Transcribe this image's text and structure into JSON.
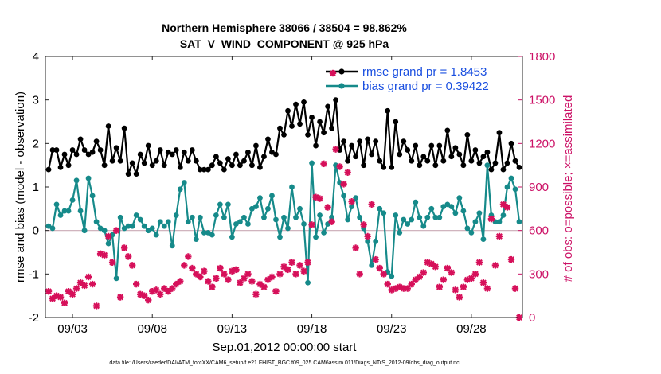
{
  "chart_data": {
    "type": "line",
    "title": "Northern Hemisphere 38066 / 38504 = 98.862%",
    "subtitle": "SAT_V_WIND_COMPONENT @ 925 hPa",
    "xlabel": "Sep.01,2012 00:00:00 start",
    "ylabel": "rmse and bias (model - observation)",
    "y2label": "# of obs: o=possible; ×=assimilated",
    "ylim": [
      -2,
      4
    ],
    "y2lim": [
      0,
      1800
    ],
    "xlim": [
      1.3,
      31.2
    ],
    "x_ticks": [
      3,
      8,
      13,
      18,
      23,
      28
    ],
    "x_ticklabels": [
      "09/03",
      "09/08",
      "09/13",
      "09/18",
      "09/23",
      "09/28"
    ],
    "y_ticks": [
      -2,
      -1,
      0,
      1,
      2,
      3,
      4
    ],
    "y2_ticks": [
      0,
      300,
      600,
      900,
      1200,
      1500,
      1800
    ],
    "zero_line": 0,
    "footnote": "data file: /Users/raeder/DAI/ATM_forcXX/CAM6_setup/f.e21.FHIST_BGC.f09_025.CAM6assim.011/Diags_NTrS_2012-09/obs_diag_output.nc",
    "legend_position": "top-right",
    "series": [
      {
        "name": "rmse grand pr = 1.8453",
        "axis": "left",
        "color": "#000000",
        "marker": "dot",
        "x": [
          1.5,
          1.75,
          2.0,
          2.25,
          2.5,
          2.75,
          3.0,
          3.25,
          3.5,
          3.75,
          4.0,
          4.25,
          4.5,
          4.75,
          5.0,
          5.25,
          5.5,
          5.75,
          6.0,
          6.25,
          6.5,
          6.75,
          7.0,
          7.25,
          7.5,
          7.75,
          8.0,
          8.25,
          8.5,
          8.75,
          9.0,
          9.25,
          9.5,
          9.75,
          10.0,
          10.25,
          10.5,
          10.75,
          11.0,
          11.25,
          11.5,
          11.75,
          12.0,
          12.25,
          12.5,
          12.75,
          13.0,
          13.25,
          13.5,
          13.75,
          14.0,
          14.25,
          14.5,
          14.75,
          15.0,
          15.25,
          15.5,
          15.75,
          16.0,
          16.25,
          16.5,
          16.75,
          17.0,
          17.25,
          17.5,
          17.75,
          18.0,
          18.25,
          18.5,
          18.75,
          19.0,
          19.25,
          19.5,
          19.75,
          20.0,
          20.25,
          20.5,
          20.75,
          21.0,
          21.25,
          21.5,
          21.75,
          22.0,
          22.25,
          22.5,
          22.75,
          23.0,
          23.25,
          23.5,
          23.75,
          24.0,
          24.25,
          24.5,
          24.75,
          25.0,
          25.25,
          25.5,
          25.75,
          26.0,
          26.25,
          26.5,
          26.75,
          27.0,
          27.25,
          27.5,
          27.75,
          28.0,
          28.25,
          28.5,
          28.75,
          29.0,
          29.25,
          29.5,
          29.75,
          30.0,
          30.25,
          30.5,
          30.75,
          31.0
        ],
        "y": [
          1.4,
          1.85,
          1.85,
          1.45,
          1.75,
          1.5,
          1.85,
          1.75,
          2.1,
          1.85,
          1.75,
          1.8,
          2.05,
          1.85,
          1.5,
          2.4,
          1.6,
          1.9,
          1.6,
          2.35,
          1.3,
          1.55,
          1.3,
          1.75,
          1.55,
          1.95,
          1.5,
          1.6,
          1.85,
          1.5,
          1.8,
          1.75,
          1.85,
          1.45,
          1.8,
          1.6,
          1.85,
          1.6,
          1.4,
          1.4,
          1.4,
          1.5,
          1.7,
          1.55,
          1.4,
          1.65,
          1.5,
          1.75,
          1.5,
          1.6,
          1.8,
          1.5,
          1.95,
          1.45,
          1.7,
          2.1,
          1.8,
          1.75,
          2.35,
          2.2,
          2.75,
          2.4,
          2.9,
          2.45,
          2.95,
          2.2,
          2.6,
          1.95,
          2.5,
          2.25,
          2.85,
          2.35,
          3.0,
          1.85,
          2.05,
          1.6,
          1.95,
          1.7,
          2.05,
          1.5,
          2.1,
          1.75,
          2.05,
          1.6,
          1.45,
          2.75,
          1.45,
          2.5,
          1.75,
          2.05,
          1.85,
          1.6,
          1.95,
          1.5,
          1.7,
          1.6,
          1.95,
          1.5,
          1.95,
          1.6,
          2.3,
          1.7,
          1.9,
          1.75,
          1.5,
          2.2,
          1.6,
          1.85,
          1.55,
          1.7,
          1.8,
          1.4,
          1.55,
          2.25,
          1.4,
          1.55,
          2.0,
          1.6,
          1.45
        ],
        "hidden_series_names": null
      },
      {
        "name": "bias grand pr = 0.39422",
        "axis": "left",
        "color": "#168a8a",
        "marker": "dot",
        "x": [
          1.5,
          1.75,
          2.0,
          2.25,
          2.5,
          2.75,
          3.0,
          3.25,
          3.5,
          3.75,
          4.0,
          4.25,
          4.5,
          4.75,
          5.0,
          5.25,
          5.5,
          5.75,
          6.0,
          6.25,
          6.5,
          6.75,
          7.0,
          7.25,
          7.5,
          7.75,
          8.0,
          8.25,
          8.5,
          8.75,
          9.0,
          9.25,
          9.5,
          9.75,
          10.0,
          10.25,
          10.5,
          10.75,
          11.0,
          11.25,
          11.5,
          11.75,
          12.0,
          12.25,
          12.5,
          12.75,
          13.0,
          13.25,
          13.5,
          13.75,
          14.0,
          14.25,
          14.5,
          14.75,
          15.0,
          15.25,
          15.5,
          15.75,
          16.0,
          16.25,
          16.5,
          16.75,
          17.0,
          17.25,
          17.5,
          17.75,
          18.0,
          18.25,
          18.5,
          18.75,
          19.0,
          19.25,
          19.5,
          19.75,
          20.0,
          20.25,
          20.5,
          20.75,
          21.0,
          21.25,
          21.5,
          21.75,
          22.0,
          22.25,
          22.5,
          22.75,
          23.0,
          23.25,
          23.5,
          23.75,
          24.0,
          24.25,
          24.5,
          24.75,
          25.0,
          25.25,
          25.5,
          25.75,
          26.0,
          26.25,
          26.5,
          26.75,
          27.0,
          27.25,
          27.5,
          27.75,
          28.0,
          28.25,
          28.5,
          28.75,
          29.0,
          29.25,
          29.5,
          29.75,
          30.0,
          30.25,
          30.5,
          30.75,
          31.0
        ],
        "y": [
          0.1,
          0.05,
          0.6,
          0.35,
          0.45,
          0.45,
          0.7,
          1.15,
          0.45,
          0.0,
          1.2,
          0.8,
          0.2,
          0.05,
          0.0,
          -0.3,
          -0.1,
          -1.1,
          0.3,
          0.05,
          0.1,
          0.1,
          0.35,
          0.25,
          0.1,
          0.0,
          0.05,
          -0.1,
          0.2,
          0.1,
          0.2,
          -0.35,
          0.35,
          0.95,
          1.1,
          0.2,
          0.3,
          -0.2,
          0.3,
          -0.05,
          -0.05,
          -0.1,
          0.35,
          0.6,
          0.3,
          0.6,
          -0.15,
          0.15,
          0.2,
          0.3,
          0.15,
          0.5,
          0.55,
          0.75,
          0.3,
          0.5,
          0.8,
          0.25,
          -0.15,
          0.3,
          0.05,
          1.0,
          0.3,
          0.5,
          0.15,
          -1.2,
          1.55,
          -0.15,
          0.35,
          -0.05,
          0.15,
          0.3,
          1.5,
          1.1,
          0.8,
          0.25,
          0.55,
          0.75,
          0.3,
          0.05,
          -0.25,
          -0.8,
          -0.25,
          0.5,
          0.4,
          -0.95,
          -1.05,
          0.35,
          -0.05,
          0.25,
          0.15,
          0.25,
          0.65,
          0.3,
          0.1,
          0.3,
          0.5,
          0.3,
          0.3,
          0.55,
          0.6,
          0.55,
          0.4,
          0.75,
          0.45,
          0.05,
          -0.05,
          0.2,
          0.4,
          -0.2,
          1.5,
          0.35,
          0.2,
          0.2,
          0.35,
          1.0,
          1.2,
          0.95,
          0.2
        ],
        "hidden_series_names": null
      },
      {
        "name": "",
        "axis": "right",
        "color": "#d6105a",
        "marker": "asterisk",
        "x": [
          1.5,
          1.75,
          2.0,
          2.25,
          2.5,
          2.75,
          3.0,
          3.25,
          3.5,
          3.75,
          4.0,
          4.25,
          4.5,
          4.75,
          5.0,
          5.25,
          5.5,
          5.75,
          6.0,
          6.25,
          6.5,
          6.75,
          7.0,
          7.25,
          7.5,
          7.75,
          8.0,
          8.25,
          8.5,
          8.75,
          9.0,
          9.25,
          9.5,
          9.75,
          10.0,
          10.25,
          10.5,
          10.75,
          11.0,
          11.25,
          11.5,
          11.75,
          12.0,
          12.25,
          12.5,
          12.75,
          13.0,
          13.25,
          13.5,
          13.75,
          14.0,
          14.25,
          14.5,
          14.75,
          15.0,
          15.25,
          15.5,
          15.75,
          16.0,
          16.25,
          16.5,
          16.75,
          17.0,
          17.25,
          17.5,
          17.75,
          18.0,
          18.25,
          18.5,
          18.75,
          19.0,
          19.25,
          19.5,
          19.75,
          20.0,
          20.25,
          20.5,
          20.75,
          21.0,
          21.25,
          21.5,
          21.75,
          22.0,
          22.25,
          22.5,
          22.75,
          23.0,
          23.25,
          23.5,
          23.75,
          24.0,
          24.25,
          24.5,
          24.75,
          25.0,
          25.25,
          25.5,
          25.75,
          26.0,
          26.25,
          26.5,
          26.75,
          27.0,
          27.25,
          27.5,
          27.75,
          28.0,
          28.25,
          28.5,
          28.75,
          29.0,
          29.25,
          29.5,
          29.75,
          30.0,
          30.25,
          30.5,
          30.75,
          31.0
        ],
        "y": [
          180,
          130,
          150,
          140,
          100,
          180,
          160,
          200,
          240,
          220,
          280,
          230,
          80,
          440,
          430,
          560,
          380,
          600,
          140,
          480,
          420,
          360,
          230,
          160,
          150,
          120,
          180,
          190,
          160,
          200,
          180,
          200,
          230,
          250,
          360,
          420,
          340,
          300,
          280,
          320,
          250,
          210,
          270,
          340,
          300,
          260,
          320,
          330,
          240,
          270,
          300,
          250,
          160,
          230,
          210,
          260,
          280,
          180,
          300,
          350,
          330,
          380,
          300,
          360,
          320,
          380,
          640,
          830,
          820,
          1060,
          760,
          660,
          1160,
          1040,
          920,
          1000,
          800,
          480,
          300,
          640,
          560,
          780,
          400,
          340,
          300,
          230,
          190,
          200,
          210,
          200,
          200,
          230,
          260,
          280,
          310,
          380,
          370,
          350,
          210,
          260,
          340,
          310,
          190,
          140,
          210,
          260,
          270,
          300,
          380,
          240,
          200,
          680,
          360,
          560,
          780,
          760,
          400,
          200,
          0
        ]
      }
    ]
  }
}
